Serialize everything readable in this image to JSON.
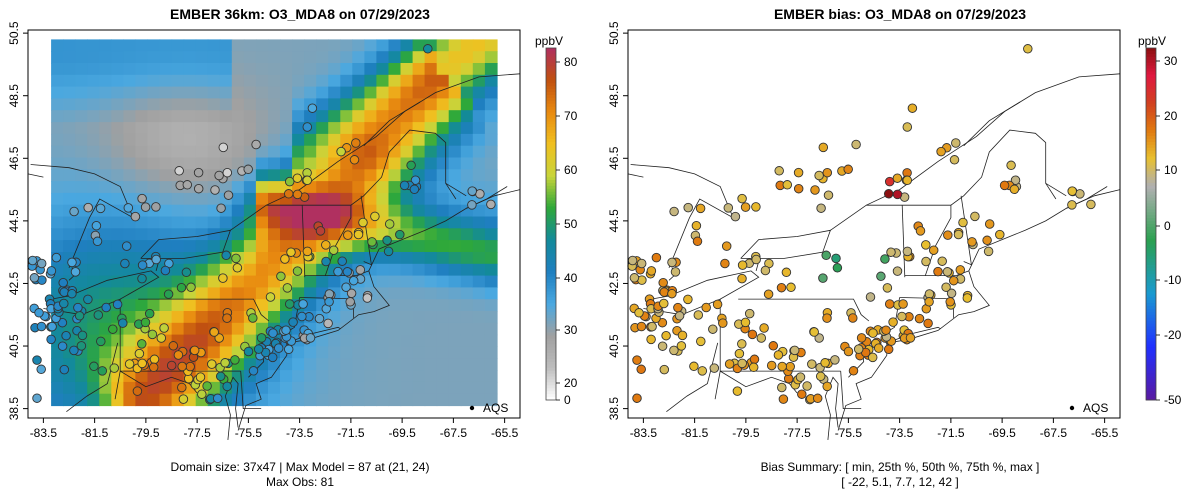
{
  "left": {
    "title": "EMBER 36km: O3_MDA8 on 07/29/2023",
    "footer_line1": "Domain size: 37x47 | Max Model = 87 at (21, 24)",
    "footer_line2": "Max Obs: 81",
    "colorbar_unit": "ppbV",
    "colorbar_ticks": [
      "0",
      "20",
      "30",
      "40",
      "50",
      "60",
      "70",
      "80"
    ],
    "colorbar_range": [
      0,
      82
    ],
    "legend_label": "AQS"
  },
  "right": {
    "title": "EMBER bias: O3_MDA8 on 07/29/2023",
    "footer_line1": "Bias Summary: [ min, 25th %, 50th %, 75th %, max ]",
    "footer_line2": "[ -22,   5.1,   7.7,   12,   42 ]",
    "colorbar_unit": "ppbV",
    "colorbar_ticks": [
      "-50",
      "-20",
      "-10",
      "0",
      "10",
      "20",
      "30"
    ],
    "colorbar_range": [
      -52,
      33
    ],
    "legend_label": "AQS"
  },
  "axes": {
    "x_ticks": [
      "-83.5",
      "-81.5",
      "-79.5",
      "-77.5",
      "-75.5",
      "-73.5",
      "-71.5",
      "-69.5",
      "-67.5",
      "-65.5"
    ],
    "y_ticks": [
      "38.5",
      "40.5",
      "42.5",
      "44.5",
      "46.5",
      "48.5",
      "50.5"
    ],
    "lon_range": [
      -84.1,
      -64.9
    ],
    "lat_range": [
      38.2,
      50.6
    ]
  },
  "colors": {
    "ozone_scale": [
      "#ffffff",
      "#bdbdbd",
      "#a0a0a0",
      "#4aa8e0",
      "#1f7fc0",
      "#138a9a",
      "#2ea83a",
      "#c8d43a",
      "#f0c020",
      "#e88a10",
      "#c05010",
      "#b03060"
    ],
    "bias_scale": [
      "#5a1aa0",
      "#2030ff",
      "#1a9ad0",
      "#2ba050",
      "#b0b0b0",
      "#e8c030",
      "#e07a10",
      "#d04020",
      "#e01840",
      "#8a1010"
    ]
  }
}
